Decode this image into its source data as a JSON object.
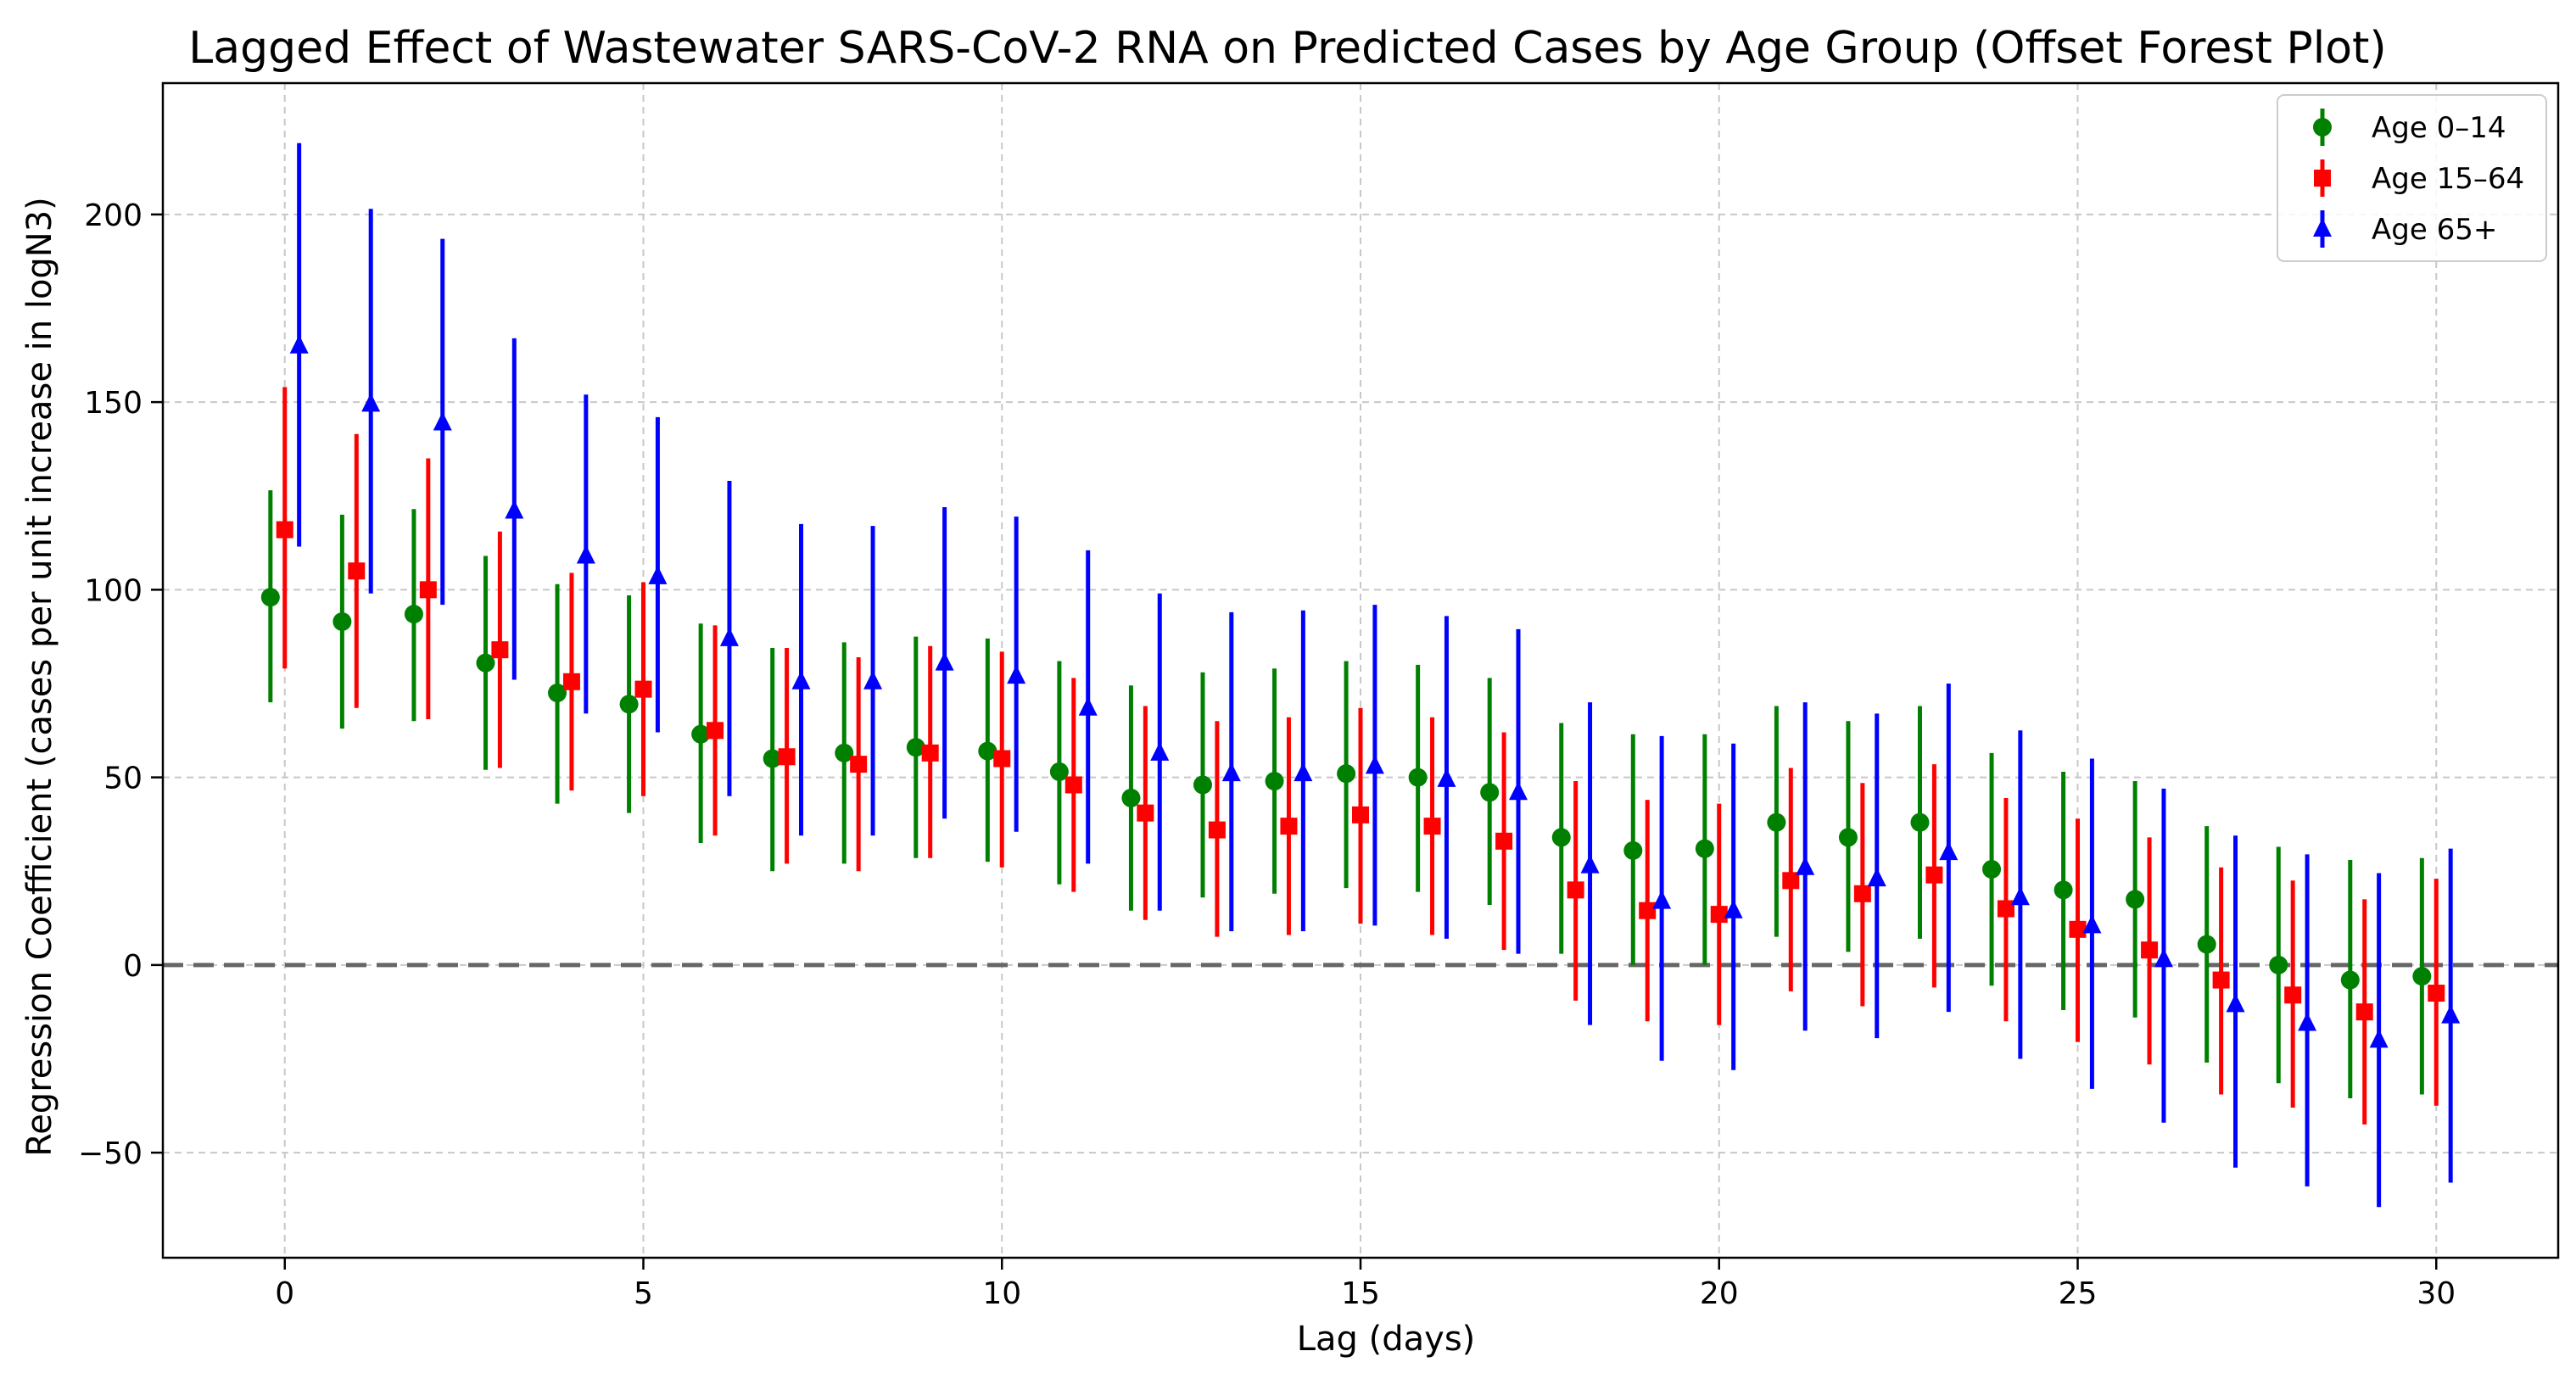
{
  "chart_data": {
    "type": "forest",
    "title": "Lagged Effect of Wastewater SARS-CoV-2 RNA on Predicted Cases by Age Group (Offset Forest Plot)",
    "xlabel": "Lag (days)",
    "ylabel": "Regression Coefficient (cases per unit increase in logN3)",
    "xlim": [
      -1.7,
      31.7
    ],
    "ylim": [
      -78,
      235
    ],
    "xticks": [
      0,
      5,
      10,
      15,
      20,
      25,
      30
    ],
    "yticks": [
      -50,
      0,
      50,
      100,
      150,
      200
    ],
    "grid": true,
    "reference_line": 0,
    "legend_position": "top-right",
    "offset": 0.2,
    "lags": [
      0,
      1,
      2,
      3,
      4,
      5,
      6,
      7,
      8,
      9,
      10,
      11,
      12,
      13,
      14,
      15,
      16,
      17,
      18,
      19,
      20,
      21,
      22,
      23,
      24,
      25,
      26,
      27,
      28,
      29,
      30
    ],
    "series": [
      {
        "name": "Age 0–14",
        "color": "#008000",
        "marker": "circle",
        "offset_index": -1,
        "estimate": [
          98,
          91.5,
          93.5,
          80.5,
          72.5,
          69.5,
          61.5,
          55,
          56.5,
          58,
          57,
          51.5,
          44.5,
          48,
          49,
          51,
          50,
          46,
          34,
          30.5,
          31,
          38,
          34,
          38,
          25.5,
          20,
          17.5,
          5.5,
          0,
          -4,
          -3
        ],
        "lower": [
          70,
          63,
          65,
          52,
          43,
          40.5,
          32.5,
          25,
          27,
          28.5,
          27.5,
          21.5,
          14.5,
          18,
          19,
          20.5,
          19.5,
          16,
          3,
          0,
          0,
          7.5,
          3.5,
          7,
          -5.5,
          -12,
          -14,
          -26,
          -31.5,
          -35.5,
          -34.5
        ],
        "upper": [
          126.5,
          120,
          121.5,
          109,
          101.5,
          98.5,
          91,
          84.5,
          86,
          87.5,
          87,
          81,
          74.5,
          78,
          79,
          81,
          80,
          76.5,
          64.5,
          61.5,
          61.5,
          69,
          65,
          69,
          56.5,
          51.5,
          49,
          37,
          31.5,
          28,
          28.5
        ]
      },
      {
        "name": "Age 15–64",
        "color": "#ff0000",
        "marker": "square",
        "offset_index": 0,
        "estimate": [
          116,
          105,
          100,
          84,
          75.5,
          73.5,
          62.5,
          55.5,
          53.5,
          56.5,
          55,
          48,
          40.5,
          36,
          37,
          40,
          37,
          33,
          20,
          14.5,
          13.5,
          22.5,
          19,
          24,
          15,
          9.5,
          4,
          -4,
          -8,
          -12.5,
          -7.5
        ],
        "lower": [
          79,
          68.5,
          65.5,
          52.5,
          46.5,
          45,
          34.5,
          27,
          25,
          28.5,
          26,
          19.5,
          12,
          7.5,
          8,
          11,
          8,
          4,
          -9.5,
          -15,
          -16,
          -7,
          -11,
          -6,
          -15,
          -20.5,
          -26.5,
          -34.5,
          -38,
          -42.5,
          -37.5
        ],
        "upper": [
          154,
          141.5,
          135,
          115.5,
          104.5,
          102,
          90.5,
          84.5,
          82,
          85,
          83.5,
          76.5,
          69,
          65,
          66,
          68.5,
          66,
          62,
          49,
          44,
          43,
          52.5,
          48.5,
          53.5,
          44.5,
          39,
          34,
          26,
          22.5,
          17.5,
          23
        ]
      },
      {
        "name": "Age 65+",
        "color": "#0000ff",
        "marker": "triangle",
        "offset_index": 1,
        "estimate": [
          165,
          149.5,
          144.5,
          121,
          109,
          103.5,
          87,
          75.5,
          75.5,
          80.5,
          77,
          68.5,
          56.5,
          51,
          51,
          53,
          49.5,
          46,
          26.5,
          17,
          14.5,
          26,
          23,
          30,
          18,
          10.5,
          1.5,
          -10.5,
          -15.5,
          -20,
          -13.5
        ],
        "lower": [
          111.5,
          99,
          96,
          76,
          67,
          62,
          45,
          34.5,
          34.5,
          39,
          35.5,
          27,
          14.5,
          9,
          9,
          10.5,
          7,
          3,
          -16,
          -25.5,
          -28,
          -17.5,
          -19.5,
          -12.5,
          -25,
          -33,
          -42,
          -54,
          -59,
          -64.5,
          -58
        ],
        "upper": [
          219,
          201.5,
          193.5,
          167,
          152,
          146,
          129,
          117.5,
          117,
          122,
          119.5,
          110.5,
          99,
          94,
          94.5,
          96,
          93,
          89.5,
          70,
          61,
          59,
          70,
          67,
          75,
          62.5,
          55,
          47,
          34.5,
          29.5,
          24.5,
          31
        ]
      }
    ]
  }
}
